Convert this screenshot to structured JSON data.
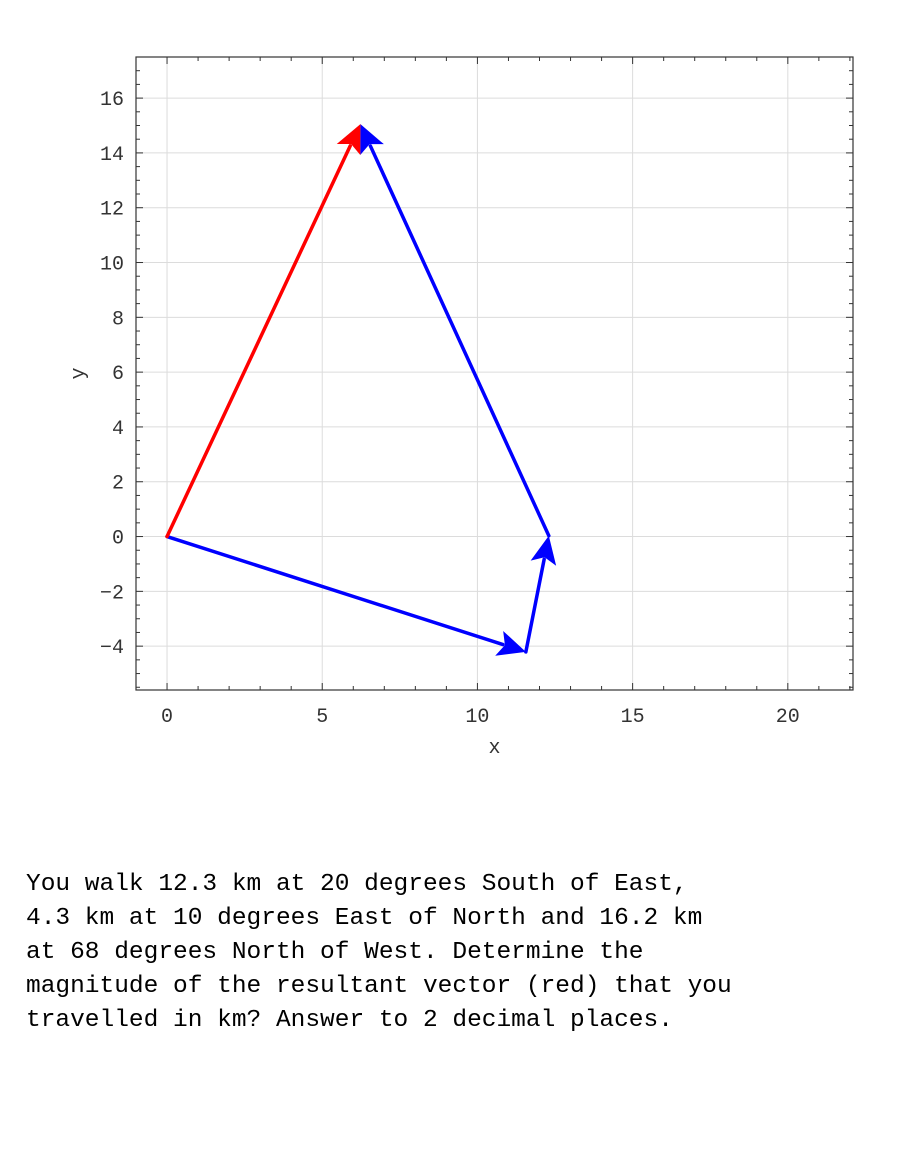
{
  "chart_data": {
    "type": "vector",
    "xlabel": "x",
    "ylabel": "y",
    "xlim": [
      -1,
      22.1
    ],
    "ylim": [
      -5.6,
      17.5
    ],
    "xticks": [
      0,
      5,
      10,
      15,
      20
    ],
    "yticks": [
      -4,
      -2,
      0,
      2,
      4,
      6,
      8,
      10,
      12,
      14,
      16
    ],
    "grid": true,
    "colors": {
      "resultant": "#ff0000",
      "component": "#0000ff"
    },
    "vectors": [
      {
        "role": "component",
        "color": "#0000ff",
        "start": [
          0,
          0
        ],
        "end": [
          11.56,
          -4.21
        ]
      },
      {
        "role": "component",
        "color": "#0000ff",
        "start": [
          11.56,
          -4.21
        ],
        "end": [
          12.3,
          0.03
        ]
      },
      {
        "role": "component",
        "color": "#0000ff",
        "start": [
          12.3,
          0.03
        ],
        "end": [
          6.23,
          15.05
        ]
      },
      {
        "role": "resultant",
        "color": "#ff0000",
        "start": [
          0,
          0
        ],
        "end": [
          6.23,
          15.05
        ]
      }
    ]
  },
  "question": {
    "text": "You walk 12.3 km at 20 degrees South of East,\n4.3 km at 10 degrees East of North and 16.2 km\nat 68 degrees North of West.  Determine the\nmagnitude of the resultant vector (red) that you\ntravelled in km? Answer to 2 decimal places."
  }
}
